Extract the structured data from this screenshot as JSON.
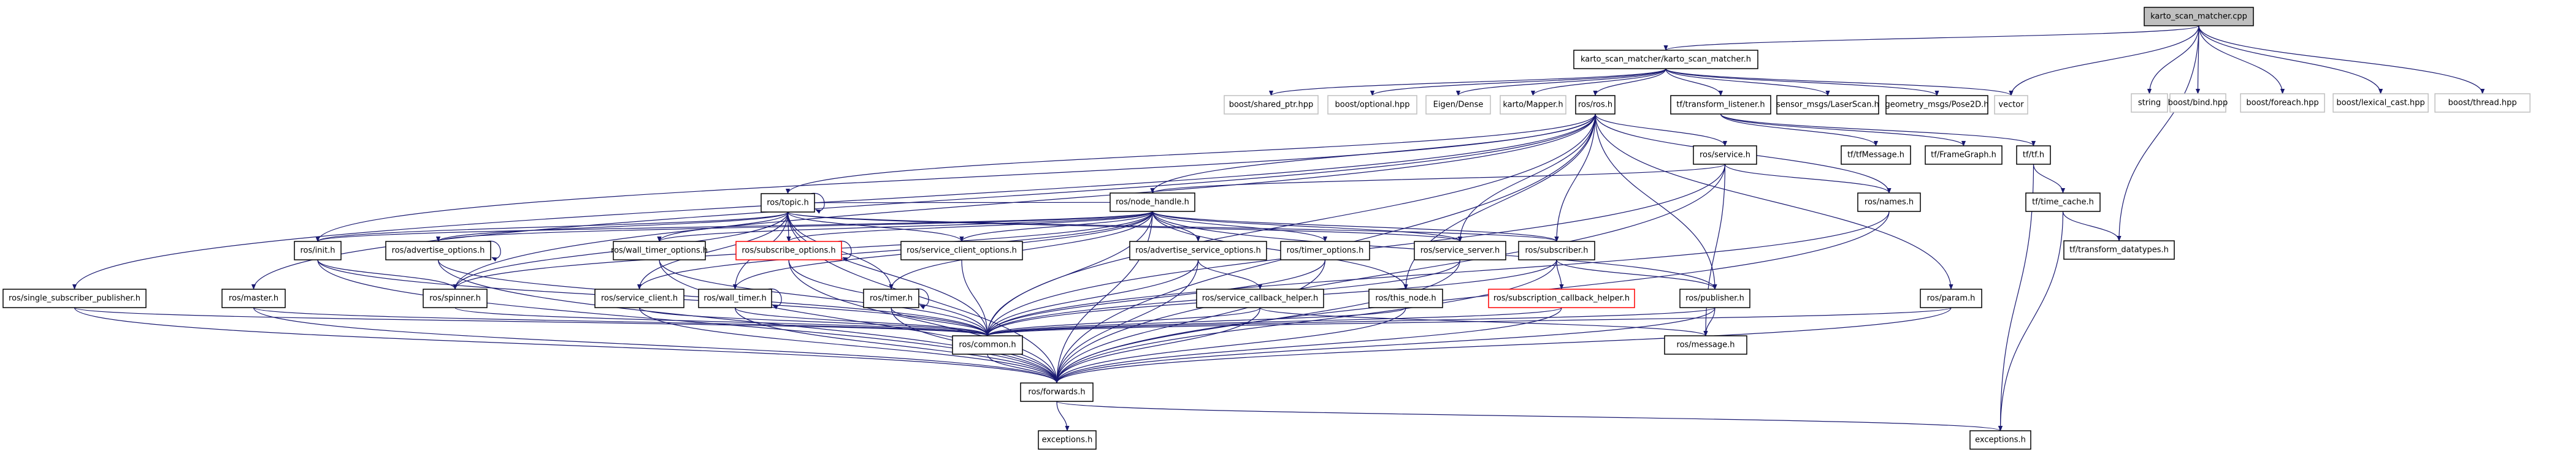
{
  "graph": {
    "edge_color": "#191970",
    "root_fill": "#bfbfbf",
    "nodes": [
      {
        "id": "cpp",
        "label": "karto_scan_matcher.cpp",
        "style": "root"
      },
      {
        "id": "ksm",
        "label": "karto_scan_matcher/karto_scan_matcher.h",
        "style": "normal"
      },
      {
        "id": "string",
        "label": "string",
        "style": "external"
      },
      {
        "id": "bind",
        "label": "boost/bind.hpp",
        "style": "external"
      },
      {
        "id": "foreach",
        "label": "boost/foreach.hpp",
        "style": "external"
      },
      {
        "id": "lexical",
        "label": "boost/lexical_cast.hpp",
        "style": "external"
      },
      {
        "id": "thread",
        "label": "boost/thread.hpp",
        "style": "external"
      },
      {
        "id": "shared_ptr",
        "label": "boost/shared_ptr.hpp",
        "style": "external"
      },
      {
        "id": "optional",
        "label": "boost/optional.hpp",
        "style": "external"
      },
      {
        "id": "eigen",
        "label": "Eigen/Dense",
        "style": "external"
      },
      {
        "id": "mapper",
        "label": "karto/Mapper.h",
        "style": "external"
      },
      {
        "id": "ros",
        "label": "ros/ros.h",
        "style": "normal"
      },
      {
        "id": "tl",
        "label": "tf/transform_listener.h",
        "style": "normal"
      },
      {
        "id": "laser",
        "label": "sensor_msgs/LaserScan.h",
        "style": "normal"
      },
      {
        "id": "pose",
        "label": "geometry_msgs/Pose2D.h",
        "style": "normal"
      },
      {
        "id": "vector",
        "label": "vector",
        "style": "external"
      },
      {
        "id": "tfmsg",
        "label": "tf/tfMessage.h",
        "style": "normal"
      },
      {
        "id": "framegraph",
        "label": "tf/FrameGraph.h",
        "style": "normal"
      },
      {
        "id": "tf",
        "label": "tf/tf.h",
        "style": "normal"
      },
      {
        "id": "service",
        "label": "ros/service.h",
        "style": "normal"
      },
      {
        "id": "names",
        "label": "ros/names.h",
        "style": "normal"
      },
      {
        "id": "timecache",
        "label": "tf/time_cache.h",
        "style": "normal"
      },
      {
        "id": "tdt",
        "label": "tf/transform_datatypes.h",
        "style": "normal"
      },
      {
        "id": "topic",
        "label": "ros/topic.h",
        "style": "normal"
      },
      {
        "id": "nh",
        "label": "ros/node_handle.h",
        "style": "normal"
      },
      {
        "id": "init",
        "label": "ros/init.h",
        "style": "normal"
      },
      {
        "id": "adv_opt",
        "label": "ros/advertise_options.h",
        "style": "normal"
      },
      {
        "id": "wt_opt",
        "label": "ros/wall_timer_options.h",
        "style": "normal"
      },
      {
        "id": "sub_opt",
        "label": "ros/subscribe_options.h",
        "style": "red"
      },
      {
        "id": "sc_opt",
        "label": "ros/service_client_options.h",
        "style": "normal"
      },
      {
        "id": "as_opt",
        "label": "ros/advertise_service_options.h",
        "style": "normal"
      },
      {
        "id": "t_opt",
        "label": "ros/timer_options.h",
        "style": "normal"
      },
      {
        "id": "ss",
        "label": "ros/service_server.h",
        "style": "normal"
      },
      {
        "id": "subscriber",
        "label": "ros/subscriber.h",
        "style": "normal"
      },
      {
        "id": "ssp",
        "label": "ros/single_subscriber_publisher.h",
        "style": "normal"
      },
      {
        "id": "master",
        "label": "ros/master.h",
        "style": "normal"
      },
      {
        "id": "spinner",
        "label": "ros/spinner.h",
        "style": "normal"
      },
      {
        "id": "sclient",
        "label": "ros/service_client.h",
        "style": "normal"
      },
      {
        "id": "wtimer",
        "label": "ros/wall_timer.h",
        "style": "normal"
      },
      {
        "id": "timer",
        "label": "ros/timer.h",
        "style": "normal"
      },
      {
        "id": "sch",
        "label": "ros/service_callback_helper.h",
        "style": "normal"
      },
      {
        "id": "thisnode",
        "label": "ros/this_node.h",
        "style": "normal"
      },
      {
        "id": "subch",
        "label": "ros/subscription_callback_helper.h",
        "style": "red"
      },
      {
        "id": "publisher",
        "label": "ros/publisher.h",
        "style": "normal"
      },
      {
        "id": "param",
        "label": "ros/param.h",
        "style": "normal"
      },
      {
        "id": "common",
        "label": "ros/common.h",
        "style": "normal"
      },
      {
        "id": "message",
        "label": "ros/message.h",
        "style": "normal"
      },
      {
        "id": "forwards",
        "label": "ros/forwards.h",
        "style": "normal"
      },
      {
        "id": "exc_l",
        "label": "exceptions.h",
        "style": "normal"
      },
      {
        "id": "exc_r",
        "label": "exceptions.h",
        "style": "normal"
      }
    ],
    "edges": [
      [
        "cpp",
        "ksm"
      ],
      [
        "cpp",
        "vector"
      ],
      [
        "cpp",
        "string"
      ],
      [
        "cpp",
        "bind"
      ],
      [
        "cpp",
        "foreach"
      ],
      [
        "cpp",
        "lexical"
      ],
      [
        "cpp",
        "thread"
      ],
      [
        "cpp",
        "tdt"
      ],
      [
        "ksm",
        "shared_ptr"
      ],
      [
        "ksm",
        "optional"
      ],
      [
        "ksm",
        "eigen"
      ],
      [
        "ksm",
        "mapper"
      ],
      [
        "ksm",
        "ros"
      ],
      [
        "ksm",
        "tl"
      ],
      [
        "ksm",
        "laser"
      ],
      [
        "ksm",
        "pose"
      ],
      [
        "ksm",
        "vector"
      ],
      [
        "tl",
        "tfmsg"
      ],
      [
        "tl",
        "framegraph"
      ],
      [
        "tl",
        "tf"
      ],
      [
        "tf",
        "timecache"
      ],
      [
        "tf",
        "exc_r"
      ],
      [
        "timecache",
        "tdt"
      ],
      [
        "timecache",
        "exc_r"
      ],
      [
        "ros",
        "topic"
      ],
      [
        "ros",
        "nh"
      ],
      [
        "ros",
        "service"
      ],
      [
        "ros",
        "names"
      ],
      [
        "ros",
        "param"
      ],
      [
        "ros",
        "init"
      ],
      [
        "ros",
        "master"
      ],
      [
        "ros",
        "ssp"
      ],
      [
        "ros",
        "spinner"
      ],
      [
        "ros",
        "ss"
      ],
      [
        "ros",
        "subscriber"
      ],
      [
        "ros",
        "publisher"
      ],
      [
        "ros",
        "thisnode"
      ],
      [
        "ros",
        "common"
      ],
      [
        "ros",
        "forwards"
      ],
      [
        "service",
        "nh"
      ],
      [
        "service",
        "names"
      ],
      [
        "service",
        "common"
      ],
      [
        "service",
        "message"
      ],
      [
        "service",
        "forwards"
      ],
      [
        "names",
        "common"
      ],
      [
        "names",
        "forwards"
      ],
      [
        "param",
        "common"
      ],
      [
        "param",
        "forwards"
      ],
      [
        "topic",
        "topic"
      ],
      [
        "topic",
        "init"
      ],
      [
        "topic",
        "adv_opt"
      ],
      [
        "topic",
        "wt_opt"
      ],
      [
        "topic",
        "sub_opt"
      ],
      [
        "topic",
        "sc_opt"
      ],
      [
        "topic",
        "spinner"
      ],
      [
        "topic",
        "timer"
      ],
      [
        "topic",
        "wtimer"
      ],
      [
        "topic",
        "sclient"
      ],
      [
        "topic",
        "ss"
      ],
      [
        "topic",
        "subscriber"
      ],
      [
        "topic",
        "common"
      ],
      [
        "topic",
        "forwards"
      ],
      [
        "nh",
        "topic"
      ],
      [
        "nh",
        "init"
      ],
      [
        "nh",
        "adv_opt"
      ],
      [
        "nh",
        "sub_opt"
      ],
      [
        "nh",
        "sc_opt"
      ],
      [
        "nh",
        "as_opt"
      ],
      [
        "nh",
        "t_opt"
      ],
      [
        "nh",
        "ss"
      ],
      [
        "nh",
        "subscriber"
      ],
      [
        "nh",
        "publisher"
      ],
      [
        "nh",
        "wt_opt"
      ],
      [
        "nh",
        "timer"
      ],
      [
        "nh",
        "wtimer"
      ],
      [
        "nh",
        "sclient"
      ],
      [
        "nh",
        "spinner"
      ],
      [
        "nh",
        "thisnode"
      ],
      [
        "nh",
        "common"
      ],
      [
        "nh",
        "forwards"
      ],
      [
        "init",
        "spinner"
      ],
      [
        "init",
        "common"
      ],
      [
        "init",
        "forwards"
      ],
      [
        "adv_opt",
        "adv_opt"
      ],
      [
        "adv_opt",
        "common"
      ],
      [
        "adv_opt",
        "forwards"
      ],
      [
        "wt_opt",
        "common"
      ],
      [
        "wt_opt",
        "forwards"
      ],
      [
        "sub_opt",
        "sub_opt"
      ],
      [
        "sub_opt",
        "common"
      ],
      [
        "sub_opt",
        "forwards"
      ],
      [
        "sc_opt",
        "common"
      ],
      [
        "as_opt",
        "sch"
      ],
      [
        "as_opt",
        "common"
      ],
      [
        "as_opt",
        "forwards"
      ],
      [
        "t_opt",
        "common"
      ],
      [
        "t_opt",
        "forwards"
      ],
      [
        "ss",
        "common"
      ],
      [
        "ss",
        "forwards"
      ],
      [
        "subscriber",
        "subch"
      ],
      [
        "subscriber",
        "common"
      ],
      [
        "subscriber",
        "forwards"
      ],
      [
        "subscriber",
        "publisher"
      ],
      [
        "ssp",
        "common"
      ],
      [
        "ssp",
        "forwards"
      ],
      [
        "master",
        "common"
      ],
      [
        "master",
        "forwards"
      ],
      [
        "spinner",
        "common"
      ],
      [
        "sclient",
        "common"
      ],
      [
        "sclient",
        "forwards"
      ],
      [
        "wtimer",
        "wtimer"
      ],
      [
        "wtimer",
        "common"
      ],
      [
        "wtimer",
        "forwards"
      ],
      [
        "timer",
        "timer"
      ],
      [
        "timer",
        "common"
      ],
      [
        "timer",
        "forwards"
      ],
      [
        "sch",
        "common"
      ],
      [
        "sch",
        "message"
      ],
      [
        "sch",
        "forwards"
      ],
      [
        "thisnode",
        "common"
      ],
      [
        "thisnode",
        "forwards"
      ],
      [
        "subch",
        "common"
      ],
      [
        "subch",
        "forwards"
      ],
      [
        "publisher",
        "common"
      ],
      [
        "publisher",
        "message"
      ],
      [
        "publisher",
        "forwards"
      ],
      [
        "common",
        "forwards"
      ],
      [
        "forwards",
        "exc_l"
      ],
      [
        "forwards",
        "exc_r"
      ]
    ]
  }
}
